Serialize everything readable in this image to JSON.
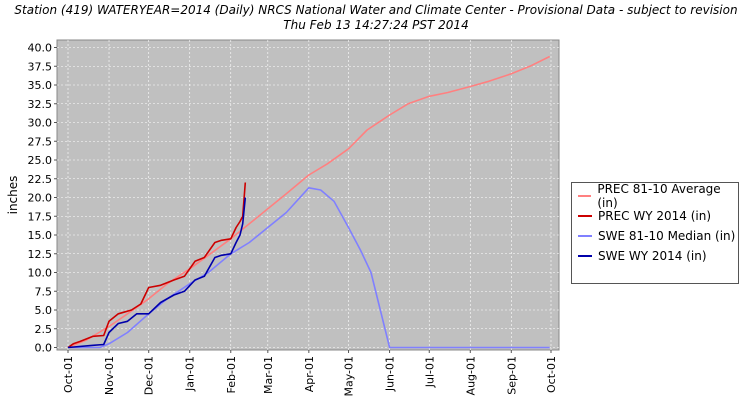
{
  "title_line1": "Station (419) WATERYEAR=2014 (Daily) NRCS National Water and Climate Center - Provisional Data - subject to revision",
  "title_line2": "Thu Feb 13 14:27:24 PST 2014",
  "chart_data": {
    "type": "line",
    "ylabel": "inches",
    "xlabel": "",
    "ylim": [
      0,
      41
    ],
    "yticks": [
      "0.0",
      "2.5",
      "5.0",
      "7.5",
      "10.0",
      "12.5",
      "15.0",
      "17.5",
      "20.0",
      "22.5",
      "25.0",
      "27.5",
      "30.0",
      "32.5",
      "35.0",
      "37.5",
      "40.0"
    ],
    "xticks": [
      "Oct-01",
      "Nov-01",
      "Dec-01",
      "Jan-01",
      "Feb-01",
      "Mar-01",
      "Apr-01",
      "May-01",
      "Jun-01",
      "Jul-01",
      "Aug-01",
      "Sep-01",
      "Oct-01"
    ],
    "grid": true,
    "legend_position": "right",
    "background": "#c0c0c0",
    "series": [
      {
        "name": "PREC 81-10 Average (in)",
        "color": "#ff8080",
        "x": [
          "2013-10-01",
          "2013-10-15",
          "2013-11-01",
          "2013-11-15",
          "2013-12-01",
          "2013-12-15",
          "2014-01-01",
          "2014-01-15",
          "2014-02-01",
          "2014-02-15",
          "2014-03-01",
          "2014-03-15",
          "2014-04-01",
          "2014-04-15",
          "2014-05-01",
          "2014-05-15",
          "2014-06-01",
          "2014-06-15",
          "2014-07-01",
          "2014-07-15",
          "2014-08-01",
          "2014-08-15",
          "2014-09-01",
          "2014-09-15",
          "2014-09-30"
        ],
        "values": [
          0.0,
          1.0,
          2.8,
          4.5,
          6.5,
          8.5,
          10.5,
          12.3,
          14.5,
          16.5,
          18.5,
          20.5,
          23.0,
          24.5,
          26.5,
          29.0,
          31.0,
          32.5,
          33.5,
          34.0,
          34.8,
          35.5,
          36.5,
          37.5,
          38.8
        ]
      },
      {
        "name": "PREC WY 2014  (in)",
        "color": "#cc0000",
        "x": [
          "2013-10-01",
          "2013-10-05",
          "2013-10-10",
          "2013-10-20",
          "2013-10-28",
          "2013-11-01",
          "2013-11-08",
          "2013-11-18",
          "2013-11-25",
          "2013-12-01",
          "2013-12-10",
          "2013-12-20",
          "2013-12-28",
          "2014-01-05",
          "2014-01-12",
          "2014-01-20",
          "2014-01-25",
          "2014-02-01",
          "2014-02-05",
          "2014-02-08",
          "2014-02-10",
          "2014-02-12"
        ],
        "values": [
          0.0,
          0.5,
          0.8,
          1.5,
          1.6,
          3.5,
          4.5,
          5.0,
          5.8,
          8.0,
          8.3,
          9.0,
          9.5,
          11.5,
          12.0,
          14.0,
          14.3,
          14.5,
          16.0,
          16.8,
          17.5,
          22.0
        ]
      },
      {
        "name": "SWE 81-10 Median (in)",
        "color": "#8080ff",
        "x": [
          "2013-10-01",
          "2013-10-25",
          "2013-11-01",
          "2013-11-15",
          "2013-12-01",
          "2013-12-15",
          "2014-01-01",
          "2014-01-15",
          "2014-02-01",
          "2014-02-15",
          "2014-03-01",
          "2014-03-15",
          "2014-04-01",
          "2014-04-10",
          "2014-04-20",
          "2014-05-01",
          "2014-05-10",
          "2014-05-18",
          "2014-05-25",
          "2014-06-01",
          "2014-06-15",
          "2014-07-01",
          "2014-09-30"
        ],
        "values": [
          0.0,
          0.0,
          0.5,
          2.0,
          4.5,
          6.5,
          8.5,
          10.0,
          12.5,
          14.0,
          16.0,
          18.0,
          21.3,
          21.0,
          19.5,
          16.0,
          13.0,
          10.0,
          5.0,
          0.0,
          0.0,
          0.0,
          0.0
        ]
      },
      {
        "name": "SWE WY 2014  (in)",
        "color": "#0000aa",
        "x": [
          "2013-10-01",
          "2013-10-20",
          "2013-10-28",
          "2013-11-01",
          "2013-11-08",
          "2013-11-15",
          "2013-11-22",
          "2013-12-01",
          "2013-12-10",
          "2013-12-20",
          "2013-12-28",
          "2014-01-05",
          "2014-01-12",
          "2014-01-20",
          "2014-01-25",
          "2014-02-01",
          "2014-02-05",
          "2014-02-08",
          "2014-02-10",
          "2014-02-12"
        ],
        "values": [
          0.0,
          0.3,
          0.4,
          2.0,
          3.2,
          3.5,
          4.5,
          4.5,
          6.0,
          7.0,
          7.5,
          9.0,
          9.5,
          12.0,
          12.3,
          12.5,
          14.0,
          15.0,
          16.5,
          20.0
        ]
      }
    ]
  }
}
